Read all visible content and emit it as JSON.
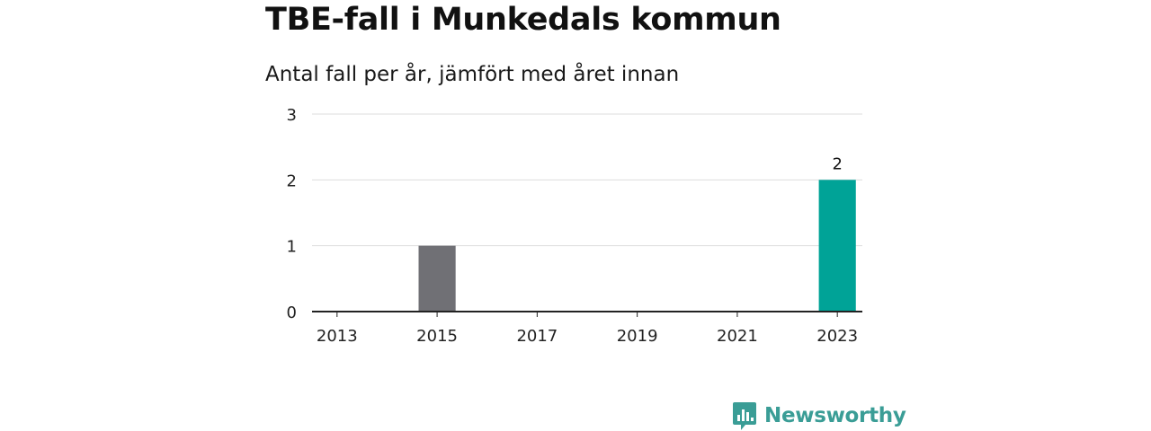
{
  "title": "TBE-fall i Munkedals kommun",
  "subtitle": "Antal fall per år, jämfört med året innan",
  "brand": {
    "name": "Newsworthy",
    "icon": "newsworthy-logo-icon"
  },
  "colors": {
    "past": "#707075",
    "current": "#00a397",
    "grid": "#dddddd",
    "axis": "#222222",
    "brand": "#3a9d96"
  },
  "chart_data": {
    "type": "bar",
    "categories": [
      "2013",
      "2014",
      "2015",
      "2016",
      "2017",
      "2018",
      "2019",
      "2020",
      "2021",
      "2022",
      "2023"
    ],
    "values": [
      0,
      0,
      1,
      0,
      0,
      0,
      0,
      0,
      0,
      0,
      2
    ],
    "x_tick_labels": [
      "2013",
      "2015",
      "2017",
      "2019",
      "2021",
      "2023"
    ],
    "y_ticks": [
      "0",
      "1",
      "2",
      "3"
    ],
    "ylim": [
      0,
      3
    ],
    "highlight": "2023",
    "data_labels": [
      {
        "category": "2023",
        "text": "2"
      }
    ],
    "grid": true
  }
}
